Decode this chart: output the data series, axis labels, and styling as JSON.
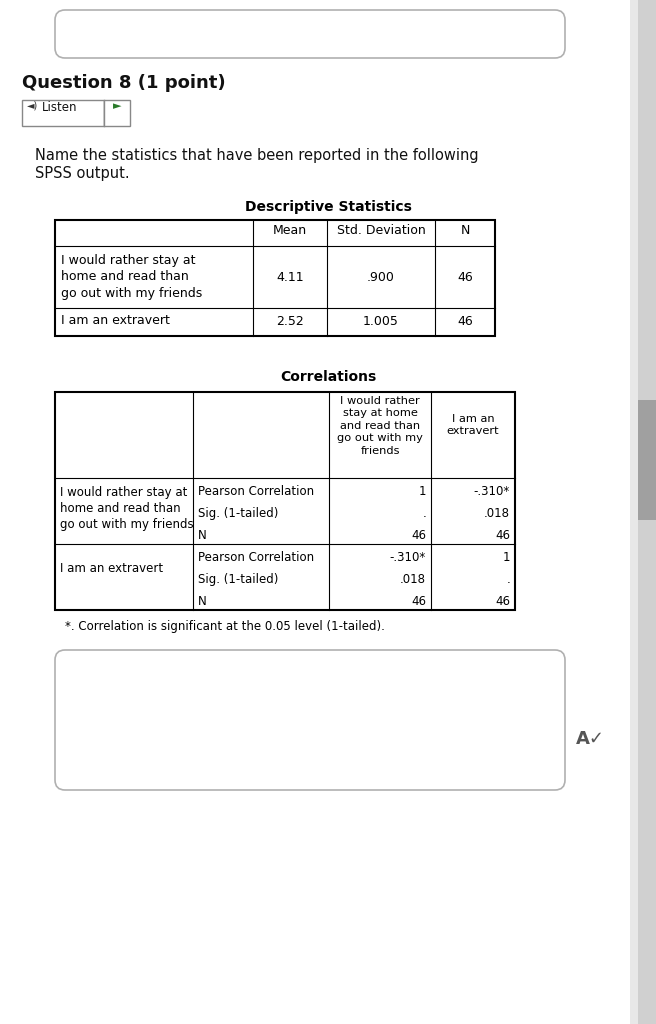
{
  "bg_color": "#e8e8e8",
  "page_bg": "#ffffff",
  "question_text": "Question 8 (1 point)",
  "body_text_1": "Name the statistics that have been reported in the following",
  "body_text_2": "SPSS output.",
  "desc_title": "Descriptive Statistics",
  "desc_headers": [
    "",
    "Mean",
    "Std. Deviation",
    "N"
  ],
  "desc_row1_label": "I would rather stay at\nhome and read than\ngo out with my friends",
  "desc_row1_vals": [
    "4.11",
    ".900",
    "46"
  ],
  "desc_row2_label": "I am an extravert",
  "desc_row2_vals": [
    "2.52",
    "1.005",
    "46"
  ],
  "corr_title": "Correlations",
  "corr_col1_header": "I would rather\nstay at home\nand read than\ngo out with my\nfriends",
  "corr_col2_header": "I am an\nextravert",
  "corr_row1_label": "I would rather stay at\nhome and read than\ngo out with my friends",
  "corr_row2_label": "I am an extravert",
  "corr_sub_labels": [
    "Pearson Correlation",
    "Sig. (1-tailed)",
    "N"
  ],
  "corr_r1_c1": [
    "1",
    ".",
    "46"
  ],
  "corr_r1_c2": [
    "-.310*",
    ".018",
    "46"
  ],
  "corr_r2_c1": [
    "-.310*",
    ".018",
    "46"
  ],
  "corr_r2_c2": [
    "1",
    ".",
    "46"
  ],
  "footnote": "*. Correlation is significant at the 0.05 level (1-tailed).",
  "listen_text": "Listen",
  "scrollbar_track": "#d0d0d0",
  "scrollbar_thumb": "#a0a0a0"
}
